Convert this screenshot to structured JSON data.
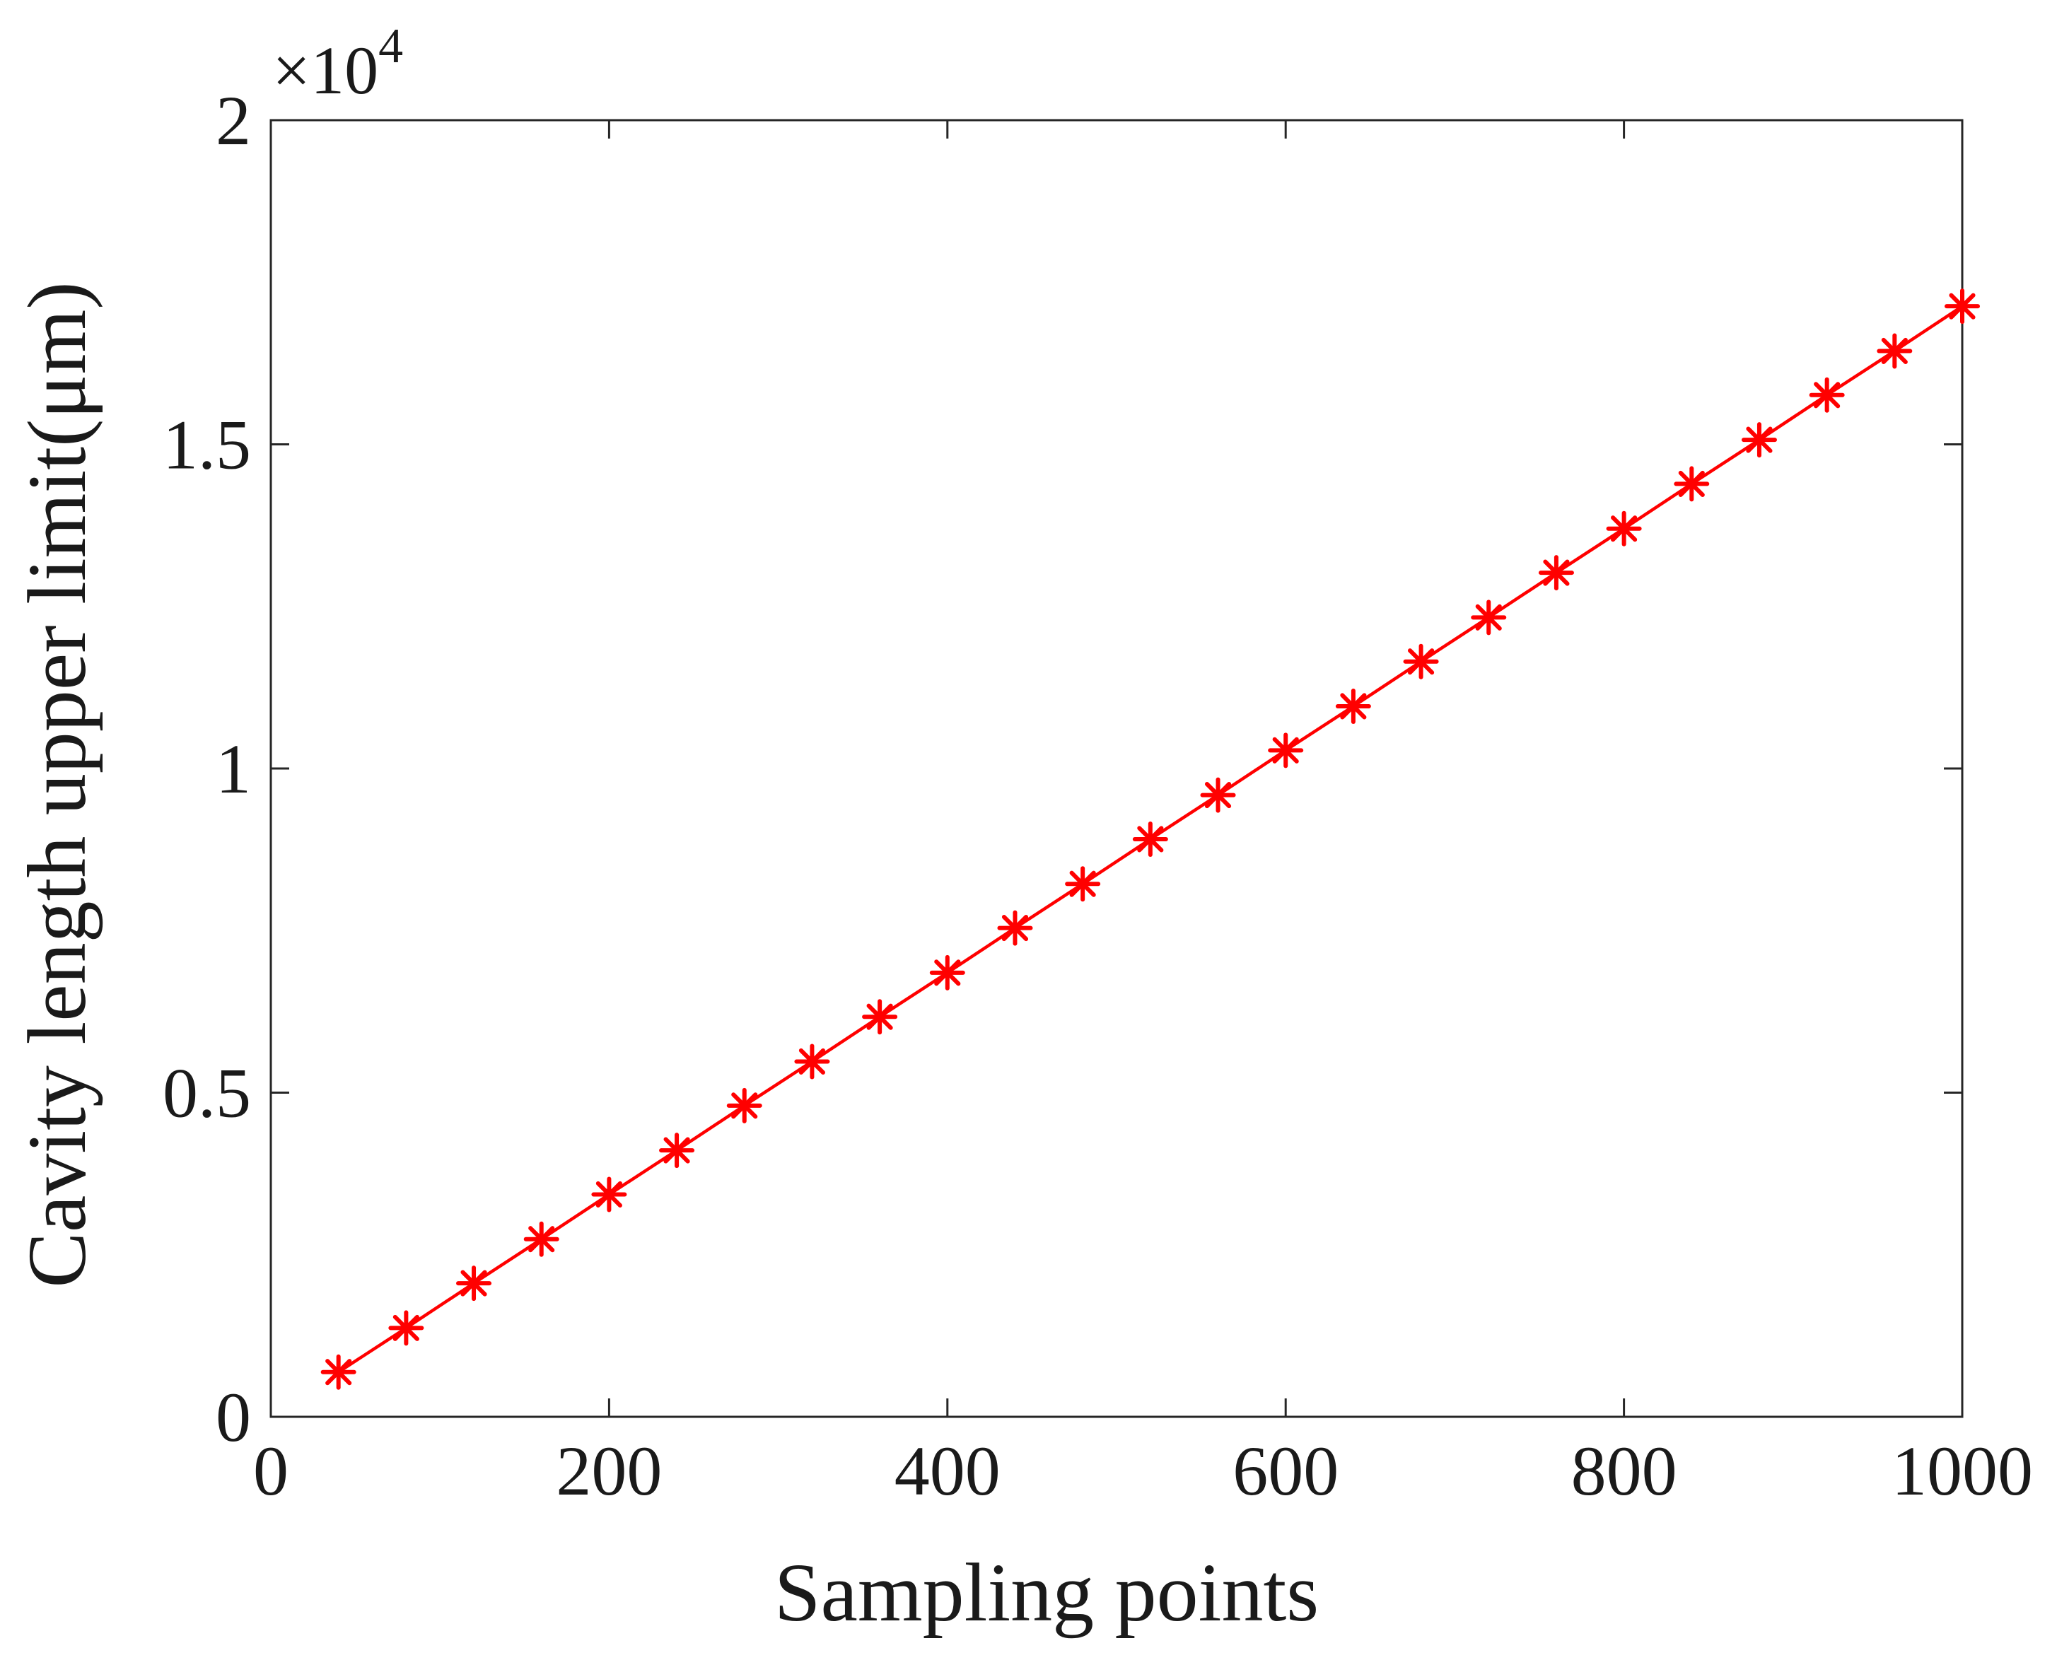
{
  "chart_data": {
    "type": "line",
    "title": "",
    "xlabel": "Sampling points",
    "ylabel": "Cavity length  upper  limit(μm)",
    "xlim": [
      0,
      1000
    ],
    "ylim": [
      0,
      20000
    ],
    "xticks": [
      0,
      200,
      400,
      600,
      800,
      1000
    ],
    "xtick_labels": [
      "0",
      "200",
      "400",
      "600",
      "800",
      "1000"
    ],
    "yticks": [
      0,
      5000,
      10000,
      15000,
      20000
    ],
    "ytick_labels": [
      "0",
      "0.5",
      "1",
      "1.5",
      "2"
    ],
    "y_multiplier_base": "×10",
    "y_multiplier_exp": "4",
    "grid": false,
    "box": true,
    "series": [
      {
        "color": "#ff0000",
        "marker": "asterisk",
        "x": [
          40,
          80,
          120,
          160,
          200,
          240,
          280,
          320,
          360,
          400,
          440,
          480,
          520,
          560,
          600,
          640,
          680,
          720,
          760,
          800,
          840,
          880,
          920,
          960,
          1000
        ],
        "y": [
          690,
          1370,
          2060,
          2740,
          3430,
          4110,
          4800,
          5480,
          6170,
          6850,
          7540,
          8220,
          8910,
          9590,
          10280,
          10960,
          11650,
          12330,
          13020,
          13700,
          14390,
          15070,
          15760,
          16440,
          17130
        ]
      }
    ]
  }
}
